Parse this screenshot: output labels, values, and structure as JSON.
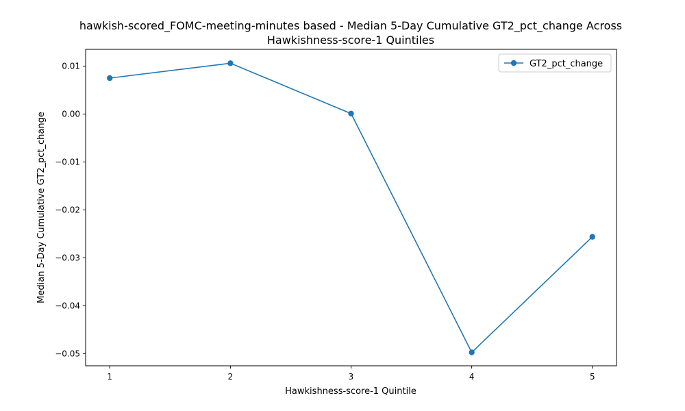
{
  "chart_data": {
    "type": "line",
    "title_line1": "hawkish-scored_FOMC-meeting-minutes based - Median 5-Day Cumulative GT2_pct_change Across",
    "title_line2": "Hawkishness-score-1 Quintiles",
    "xlabel": "Hawkishness-score-1 Quintile",
    "ylabel": "Median 5-Day Cumulative GT2_pct_change",
    "x": [
      1,
      2,
      3,
      4,
      5
    ],
    "x_tick_labels": [
      "1",
      "2",
      "3",
      "4",
      "5"
    ],
    "xlim": [
      0.8,
      5.2
    ],
    "y_ticks": [
      0.01,
      0.0,
      -0.01,
      -0.02,
      -0.03,
      -0.04,
      -0.05
    ],
    "y_tick_labels": [
      "0.01",
      "0.00",
      "−0.01",
      "−0.02",
      "−0.03",
      "−0.04",
      "−0.05"
    ],
    "ylim": [
      -0.0525,
      0.0135
    ],
    "series": [
      {
        "name": "GT2_pct_change",
        "values": [
          0.0075,
          0.0106,
          0.0001,
          -0.0497,
          -0.0256
        ]
      }
    ],
    "legend_position": "upper-right",
    "grid": false,
    "colors": {
      "line": "#1f77b4",
      "axes": "#000000",
      "background": "#ffffff"
    }
  }
}
